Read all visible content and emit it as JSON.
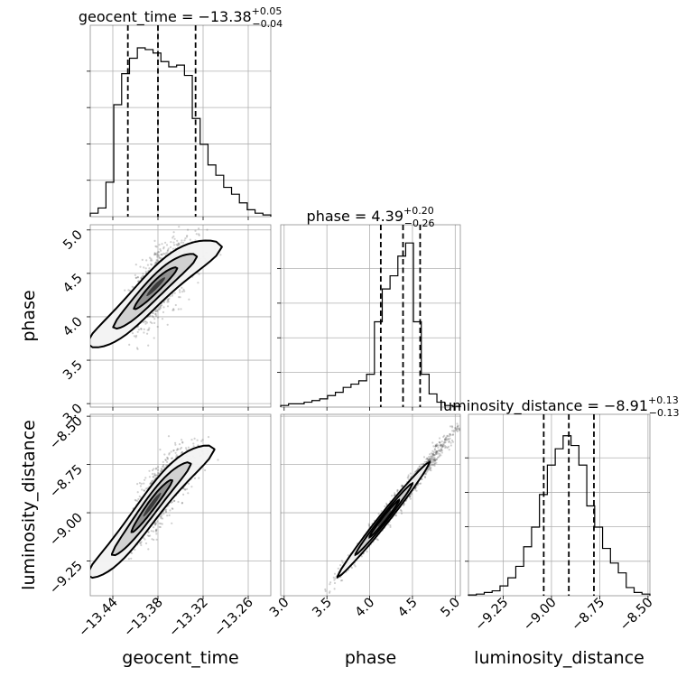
{
  "chart_data": {
    "type": "corner",
    "parameters": [
      "geocent_time",
      "phase",
      "luminosity_distance"
    ],
    "titles": [
      {
        "param": "geocent_time",
        "name": "geocent_time",
        "median": "−13.38",
        "plus": "+0.05",
        "minus": "−0.04"
      },
      {
        "param": "phase",
        "name": "phase",
        "median": "4.39",
        "plus": "+0.20",
        "minus": "−0.26"
      },
      {
        "param": "luminosity_distance",
        "name": "luminosity_distance",
        "median": "−8.91",
        "plus": "+0.13",
        "minus": "−0.13"
      }
    ],
    "axis_labels": {
      "x": [
        "geocent_time",
        "phase",
        "luminosity_distance"
      ],
      "y": [
        "phase",
        "luminosity_distance"
      ]
    },
    "ranges": {
      "geocent_time": [
        -13.47,
        -13.23
      ],
      "phase": [
        2.96,
        5.06
      ],
      "luminosity_distance": [
        -9.43,
        -8.49
      ]
    },
    "ticks": {
      "geocent_time": {
        "values": [
          -13.44,
          -13.38,
          -13.32,
          -13.26
        ],
        "labels": [
          "−13.44",
          "−13.38",
          "−13.32",
          "−13.26"
        ]
      },
      "phase": {
        "values": [
          3.0,
          3.5,
          4.0,
          4.5,
          5.0
        ],
        "labels": [
          "3.0",
          "3.5",
          "4.0",
          "4.5",
          "5.0"
        ]
      },
      "luminosity_distance": {
        "values": [
          -9.25,
          -9.0,
          -8.75,
          -8.5
        ],
        "labels": [
          "−9.25",
          "−9.00",
          "−8.75",
          "−8.50"
        ]
      }
    },
    "quantiles": {
      "geocent_time": [
        -13.42,
        -13.38,
        -13.33
      ],
      "phase": [
        4.13,
        4.39,
        4.59
      ],
      "luminosity_distance": [
        -9.04,
        -8.91,
        -8.78
      ]
    },
    "histograms": {
      "geocent_time": [
        0.02,
        0.05,
        0.2,
        0.65,
        0.83,
        0.92,
        0.98,
        0.97,
        0.95,
        0.9,
        0.87,
        0.88,
        0.82,
        0.57,
        0.42,
        0.3,
        0.24,
        0.17,
        0.13,
        0.08,
        0.04,
        0.02,
        0.01
      ],
      "phase": [
        0.01,
        0.02,
        0.02,
        0.03,
        0.04,
        0.05,
        0.07,
        0.09,
        0.12,
        0.14,
        0.16,
        0.2,
        0.52,
        0.72,
        0.8,
        0.92,
        1.0,
        0.52,
        0.2,
        0.08,
        0.03,
        0.01,
        0.005
      ],
      "luminosity_distance": [
        0.005,
        0.01,
        0.02,
        0.03,
        0.06,
        0.11,
        0.18,
        0.3,
        0.42,
        0.62,
        0.8,
        0.9,
        0.98,
        0.92,
        0.8,
        0.55,
        0.42,
        0.29,
        0.2,
        0.14,
        0.05,
        0.02,
        0.01
      ]
    },
    "grid": true
  }
}
